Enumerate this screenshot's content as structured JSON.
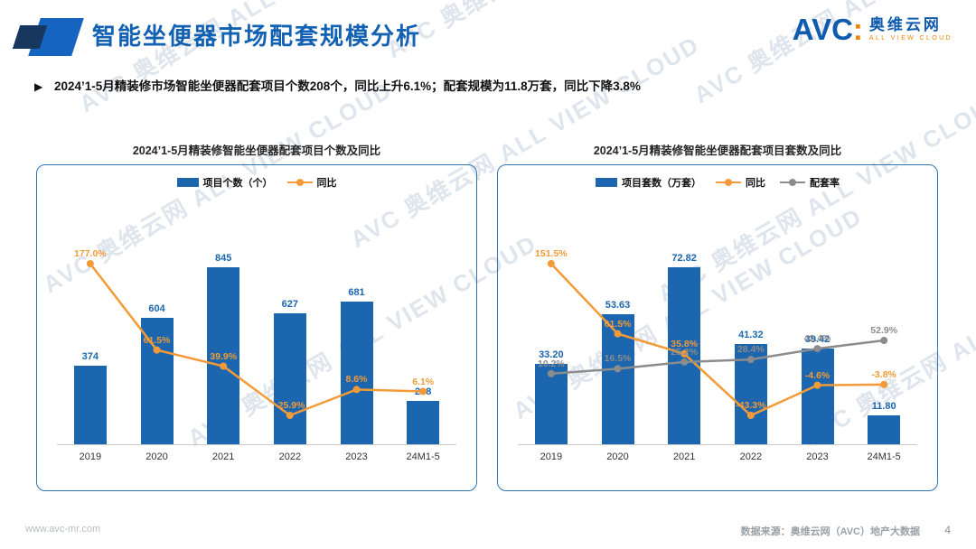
{
  "page": {
    "title": "智能坐便器市场配套规模分析",
    "bullet_icon": "▶",
    "bullet": "2024’1-5月精装修市场智能坐便器配套项目个数208个，同比上升6.1%；配套规模为11.8万套，同比下降3.8%",
    "watermark": "AVC 奥维云网 ALL VIEW CLOUD",
    "footer_left": "www.avc-mr.com",
    "footer_right": "数据来源：奥维云网（AVC）地产大数据",
    "page_number": "4"
  },
  "logo": {
    "avc": "AVC",
    "colon": ":",
    "name": "奥维云网",
    "sub": "ALL VIEW CLOUD"
  },
  "colors": {
    "title_blue": "#1261b2",
    "bar_blue": "#1b66ae",
    "orange": "#f29b38",
    "gray": "#8c8c8c",
    "panel_border": "#2e75b6"
  },
  "chart_data": [
    {
      "type": "bar",
      "title": "2024’1-5月精装修智能坐便器配套项目个数及同比",
      "categories": [
        "2019",
        "2020",
        "2021",
        "2022",
        "2023",
        "24M1-5"
      ],
      "grid": false,
      "legend_position": "top",
      "series": [
        {
          "name": "项目个数（个）",
          "type": "bar",
          "color": "#1b66ae",
          "values": [
            374,
            604,
            845,
            627,
            681,
            208
          ],
          "labels": [
            "374",
            "604",
            "845",
            "627",
            "681",
            "208"
          ]
        },
        {
          "name": "同比",
          "type": "line",
          "color": "#f29b38",
          "unit": "%",
          "values": [
            177.0,
            61.5,
            39.9,
            -25.9,
            8.6,
            6.1
          ],
          "labels": [
            "177.0%",
            "61.5%",
            "39.9%",
            "-25.9%",
            "8.6%",
            "6.1%"
          ]
        }
      ]
    },
    {
      "type": "bar",
      "title": "2024’1-5月精装修智能坐便器配套项目套数及同比",
      "categories": [
        "2019",
        "2020",
        "2021",
        "2022",
        "2023",
        "24M1-5"
      ],
      "grid": false,
      "legend_position": "top",
      "series": [
        {
          "name": "项目套数（万套）",
          "type": "bar",
          "color": "#1b66ae",
          "values": [
            33.2,
            53.63,
            72.82,
            41.32,
            39.42,
            11.8
          ],
          "labels": [
            "33.20",
            "53.63",
            "72.82",
            "41.32",
            "39.42",
            "11.80"
          ]
        },
        {
          "name": "同比",
          "type": "line",
          "color": "#f29b38",
          "unit": "%",
          "values": [
            151.5,
            61.5,
            35.8,
            -43.3,
            -4.6,
            -3.8
          ],
          "labels": [
            "151.5%",
            "61.5%",
            "35.8%",
            "-43.3%",
            "-4.6%",
            "-3.8%"
          ]
        },
        {
          "name": "配套率",
          "type": "line",
          "color": "#8c8c8c",
          "unit": "%",
          "values": [
            10.2,
            16.5,
            25.2,
            28.4,
            42.4,
            52.9
          ],
          "labels": [
            "10.2%",
            "16.5%",
            "25.2%",
            "28.4%",
            "42.4%",
            "52.9%"
          ]
        }
      ]
    }
  ]
}
